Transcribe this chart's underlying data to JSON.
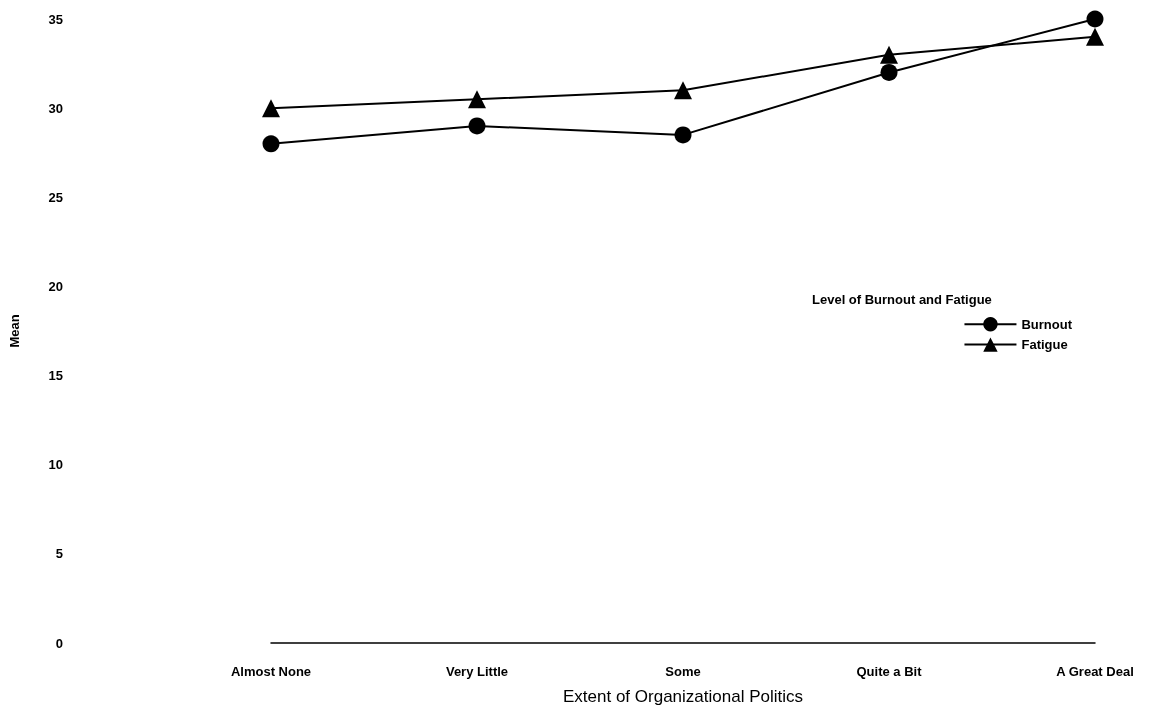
{
  "chart_data": {
    "type": "line",
    "xlabel": "Extent of Organizational Politics",
    "ylabel": "Mean",
    "categories": [
      "Almost None",
      "Very Little",
      "Some",
      "Quite a Bit",
      "A Great Deal"
    ],
    "series": [
      {
        "name": "Burnout",
        "color": "#000000",
        "marker": "circle",
        "values": [
          28,
          29,
          28.5,
          32,
          35
        ]
      },
      {
        "name": "Fatigue",
        "color": "#000000",
        "marker": "triangle",
        "values": [
          30,
          30.5,
          31,
          33,
          34
        ]
      }
    ],
    "ylim": [
      0,
      35
    ],
    "yticks": [
      0,
      5,
      10,
      15,
      20,
      25,
      30,
      35
    ],
    "grid": false,
    "legend": "right",
    "legend_title": "Level of Burnout and Fatigue",
    "line_style": "solid"
  }
}
